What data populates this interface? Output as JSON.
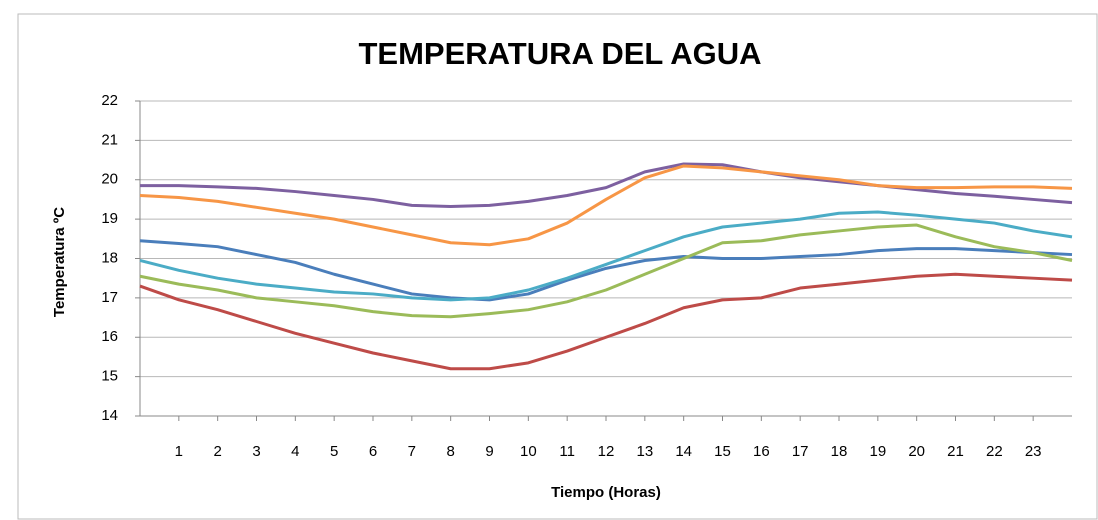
{
  "chart_data": {
    "type": "line",
    "title": "TEMPERATURA DEL AGUA",
    "xlabel": "Tiempo (Horas)",
    "ylabel": "Temperatura ºC",
    "x": [
      0,
      1,
      2,
      3,
      4,
      5,
      6,
      7,
      8,
      9,
      10,
      11,
      12,
      13,
      14,
      15,
      16,
      17,
      18,
      19,
      20,
      21,
      22,
      23,
      24
    ],
    "xlim": [
      0,
      24
    ],
    "xticks": [
      1,
      2,
      3,
      4,
      5,
      6,
      7,
      8,
      9,
      10,
      11,
      12,
      13,
      14,
      15,
      16,
      17,
      18,
      19,
      20,
      21,
      22,
      23
    ],
    "ylim": [
      14,
      22
    ],
    "yticks": [
      14,
      15,
      16,
      17,
      18,
      19,
      20,
      21,
      22
    ],
    "grid": true,
    "series": [
      {
        "color": "#7d60a0",
        "values": [
          19.85,
          19.85,
          19.82,
          19.78,
          19.7,
          19.6,
          19.5,
          19.35,
          19.32,
          19.35,
          19.45,
          19.6,
          19.8,
          20.2,
          20.4,
          20.38,
          20.2,
          20.05,
          19.95,
          19.85,
          19.75,
          19.65,
          19.58,
          19.5,
          19.42
        ]
      },
      {
        "color": "#f79646",
        "values": [
          19.6,
          19.55,
          19.45,
          19.3,
          19.15,
          19.0,
          18.8,
          18.6,
          18.4,
          18.35,
          18.5,
          18.9,
          19.5,
          20.05,
          20.35,
          20.3,
          20.2,
          20.1,
          20.0,
          19.85,
          19.8,
          19.8,
          19.82,
          19.82,
          19.78
        ]
      },
      {
        "color": "#4a7ebb",
        "values": [
          18.45,
          18.38,
          18.3,
          18.1,
          17.9,
          17.6,
          17.35,
          17.1,
          17.0,
          16.95,
          17.1,
          17.45,
          17.75,
          17.95,
          18.05,
          18.0,
          18.0,
          18.05,
          18.1,
          18.2,
          18.25,
          18.25,
          18.2,
          18.15,
          18.1
        ]
      },
      {
        "color": "#4bacc6",
        "values": [
          17.95,
          17.7,
          17.5,
          17.35,
          17.25,
          17.15,
          17.1,
          17.0,
          16.95,
          17.0,
          17.2,
          17.5,
          17.85,
          18.2,
          18.55,
          18.8,
          18.9,
          19.0,
          19.15,
          19.18,
          19.1,
          19.0,
          18.9,
          18.7,
          18.55
        ]
      },
      {
        "color": "#9bbb59",
        "values": [
          17.55,
          17.35,
          17.2,
          17.0,
          16.9,
          16.8,
          16.65,
          16.55,
          16.52,
          16.6,
          16.7,
          16.9,
          17.2,
          17.6,
          18.0,
          18.4,
          18.45,
          18.6,
          18.7,
          18.8,
          18.85,
          18.55,
          18.3,
          18.15,
          17.95
        ]
      },
      {
        "color": "#be4b48",
        "values": [
          17.3,
          16.95,
          16.7,
          16.4,
          16.1,
          15.85,
          15.6,
          15.4,
          15.2,
          15.2,
          15.35,
          15.65,
          16.0,
          16.35,
          16.75,
          16.95,
          17.0,
          17.25,
          17.35,
          17.45,
          17.55,
          17.6,
          17.55,
          17.5,
          17.45
        ]
      }
    ]
  }
}
